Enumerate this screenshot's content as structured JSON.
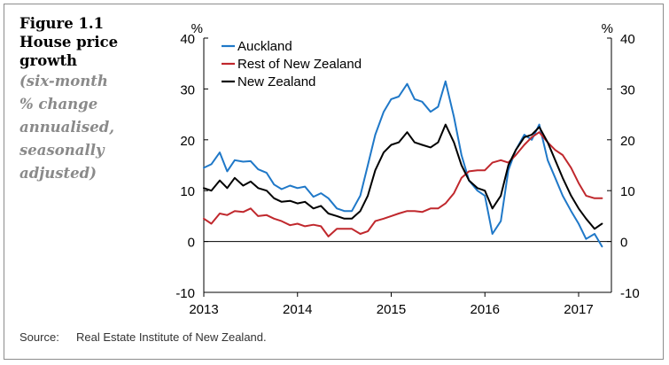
{
  "figure": {
    "title_lines": [
      "Figure 1.1",
      "House price",
      "growth"
    ],
    "subtitle_lines": [
      "(six-month",
      "% change",
      "annualised,",
      "seasonally",
      "adjusted)"
    ]
  },
  "source": {
    "label": "Source:",
    "text": "Real Estate Institute of New Zealand."
  },
  "chart_data": {
    "type": "line",
    "y_unit_left": "%",
    "y_unit_right": "%",
    "xlim": [
      2013,
      2017.35
    ],
    "ylim": [
      -10,
      40
    ],
    "y_ticks": [
      -10,
      0,
      10,
      20,
      30,
      40
    ],
    "x_ticks": [
      2013,
      2014,
      2015,
      2016,
      2017
    ],
    "grid": false,
    "zero_line": true,
    "legend_position": "top-left",
    "series": [
      {
        "name": "Auckland",
        "color": "#1f78c8",
        "x": [
          2013.0,
          2013.08,
          2013.17,
          2013.25,
          2013.33,
          2013.42,
          2013.5,
          2013.58,
          2013.67,
          2013.75,
          2013.83,
          2013.92,
          2014.0,
          2014.08,
          2014.17,
          2014.25,
          2014.33,
          2014.42,
          2014.5,
          2014.58,
          2014.67,
          2014.75,
          2014.83,
          2014.92,
          2015.0,
          2015.08,
          2015.17,
          2015.25,
          2015.33,
          2015.42,
          2015.5,
          2015.58,
          2015.67,
          2015.75,
          2015.83,
          2015.92,
          2016.0,
          2016.08,
          2016.17,
          2016.25,
          2016.33,
          2016.42,
          2016.5,
          2016.58,
          2016.67,
          2016.75,
          2016.83,
          2016.92,
          2017.0,
          2017.08,
          2017.17,
          2017.25
        ],
        "y": [
          14.5,
          15.2,
          17.5,
          13.8,
          16.0,
          15.7,
          15.8,
          14.2,
          13.5,
          11.2,
          10.3,
          11.0,
          10.5,
          10.8,
          8.8,
          9.5,
          8.5,
          6.5,
          6.0,
          6.0,
          9.0,
          15.0,
          21.0,
          25.5,
          28.0,
          28.5,
          31.0,
          28.0,
          27.5,
          25.5,
          26.5,
          31.5,
          24.5,
          17.0,
          12.0,
          10.0,
          9.0,
          1.5,
          4.0,
          14.0,
          18.0,
          21.0,
          20.0,
          23.0,
          16.0,
          12.5,
          9.0,
          6.0,
          3.5,
          0.5,
          1.5,
          -1.0
        ]
      },
      {
        "name": "Rest of New Zealand",
        "color": "#c0282d",
        "x": [
          2013.0,
          2013.08,
          2013.17,
          2013.25,
          2013.33,
          2013.42,
          2013.5,
          2013.58,
          2013.67,
          2013.75,
          2013.83,
          2013.92,
          2014.0,
          2014.08,
          2014.17,
          2014.25,
          2014.33,
          2014.42,
          2014.5,
          2014.58,
          2014.67,
          2014.75,
          2014.83,
          2014.92,
          2015.0,
          2015.08,
          2015.17,
          2015.25,
          2015.33,
          2015.42,
          2015.5,
          2015.58,
          2015.67,
          2015.75,
          2015.83,
          2015.92,
          2016.0,
          2016.08,
          2016.17,
          2016.25,
          2016.33,
          2016.42,
          2016.5,
          2016.58,
          2016.67,
          2016.75,
          2016.83,
          2016.92,
          2017.0,
          2017.08,
          2017.17,
          2017.25
        ],
        "y": [
          4.5,
          3.5,
          5.5,
          5.2,
          6.0,
          5.8,
          6.5,
          5.0,
          5.2,
          4.5,
          4.0,
          3.2,
          3.5,
          3.0,
          3.3,
          3.0,
          1.0,
          2.5,
          2.5,
          2.5,
          1.5,
          2.0,
          4.0,
          4.5,
          5.0,
          5.5,
          6.0,
          6.0,
          5.8,
          6.5,
          6.5,
          7.5,
          9.5,
          12.5,
          13.8,
          14.0,
          14.0,
          15.5,
          16.0,
          15.5,
          17.0,
          19.0,
          20.5,
          21.5,
          19.5,
          18.0,
          17.0,
          14.5,
          11.5,
          9.0,
          8.5,
          8.5
        ]
      },
      {
        "name": "New Zealand",
        "color": "#000000",
        "x": [
          2013.0,
          2013.08,
          2013.17,
          2013.25,
          2013.33,
          2013.42,
          2013.5,
          2013.58,
          2013.67,
          2013.75,
          2013.83,
          2013.92,
          2014.0,
          2014.08,
          2014.17,
          2014.25,
          2014.33,
          2014.42,
          2014.5,
          2014.58,
          2014.67,
          2014.75,
          2014.83,
          2014.92,
          2015.0,
          2015.08,
          2015.17,
          2015.25,
          2015.33,
          2015.42,
          2015.5,
          2015.58,
          2015.67,
          2015.75,
          2015.83,
          2015.92,
          2016.0,
          2016.08,
          2016.17,
          2016.25,
          2016.33,
          2016.42,
          2016.5,
          2016.58,
          2016.67,
          2016.75,
          2016.83,
          2016.92,
          2017.0,
          2017.08,
          2017.17,
          2017.25
        ],
        "y": [
          10.5,
          10.0,
          12.0,
          10.5,
          12.5,
          11.0,
          11.8,
          10.5,
          10.0,
          8.5,
          7.8,
          8.0,
          7.5,
          7.8,
          6.5,
          7.0,
          5.5,
          5.0,
          4.5,
          4.5,
          6.0,
          9.0,
          14.0,
          17.5,
          19.0,
          19.5,
          21.5,
          19.5,
          19.0,
          18.5,
          19.5,
          23.0,
          19.5,
          15.0,
          12.0,
          10.5,
          10.0,
          6.5,
          9.0,
          15.0,
          18.0,
          20.5,
          21.0,
          22.5,
          19.5,
          16.0,
          12.5,
          9.0,
          6.5,
          4.5,
          2.5,
          3.5
        ]
      }
    ]
  }
}
